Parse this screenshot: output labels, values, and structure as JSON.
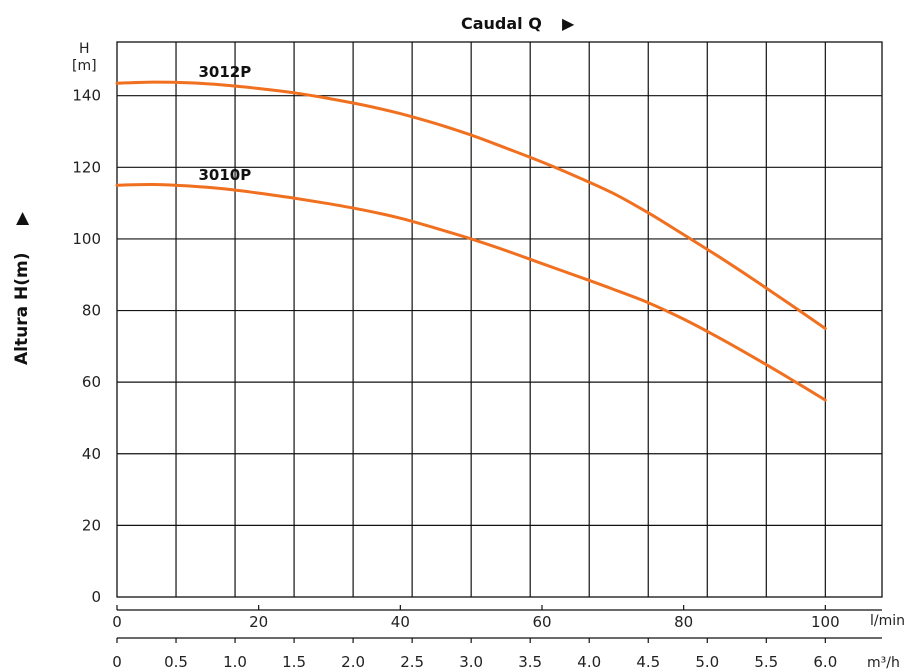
{
  "chart_data": {
    "type": "line",
    "title": "Caudal Q",
    "title_marker": "▶",
    "xlabel": "",
    "ylabel": "Altura H(m)",
    "ylabel_marker": "▶",
    "y_unit_top": "H",
    "y_unit_bottom": "[m]",
    "x_unit_primary": "l/min",
    "x_unit_secondary": "m³/h",
    "xlim": [
      0,
      108
    ],
    "ylim": [
      0,
      155
    ],
    "grid": true,
    "x_ticks_primary": [
      {
        "value": 0,
        "label": "0"
      },
      {
        "value": 20,
        "label": "20"
      },
      {
        "value": 40,
        "label": "40"
      },
      {
        "value": 60,
        "label": "60"
      },
      {
        "value": 80,
        "label": "80"
      },
      {
        "value": 100,
        "label": "100"
      }
    ],
    "x_ticks_secondary": [
      {
        "value": 0,
        "label": "0"
      },
      {
        "value": 0.5,
        "label": "0.5"
      },
      {
        "value": 1.0,
        "label": "1.0"
      },
      {
        "value": 1.5,
        "label": "1.5"
      },
      {
        "value": 2.0,
        "label": "2.0"
      },
      {
        "value": 2.5,
        "label": "2.5"
      },
      {
        "value": 3.0,
        "label": "3.0"
      },
      {
        "value": 3.5,
        "label": "3.5"
      },
      {
        "value": 4.0,
        "label": "4.0"
      },
      {
        "value": 4.5,
        "label": "4.5"
      },
      {
        "value": 5.0,
        "label": "5.0"
      },
      {
        "value": 5.5,
        "label": "5.5"
      },
      {
        "value": 6.0,
        "label": "6.0"
      }
    ],
    "y_ticks": [
      {
        "value": 0,
        "label": "0"
      },
      {
        "value": 20,
        "label": "20"
      },
      {
        "value": 40,
        "label": "40"
      },
      {
        "value": 60,
        "label": "60"
      },
      {
        "value": 80,
        "label": "80"
      },
      {
        "value": 100,
        "label": "100"
      },
      {
        "value": 120,
        "label": "120"
      },
      {
        "value": 140,
        "label": "140"
      }
    ],
    "series": [
      {
        "name": "3012P",
        "color": "#f07020",
        "x": [
          0,
          5,
          10,
          15,
          20,
          25,
          30,
          35,
          40,
          45,
          50,
          55,
          60,
          65,
          70,
          75,
          80,
          85,
          90,
          95,
          100
        ],
        "y": [
          143.5,
          143.8,
          143.6,
          143.0,
          142.0,
          140.8,
          139.2,
          137.3,
          135.0,
          132.2,
          129.0,
          125.3,
          121.5,
          117.3,
          112.8,
          107.3,
          101.2,
          95.0,
          88.5,
          81.8,
          75.0
        ]
      },
      {
        "name": "3010P",
        "color": "#f07020",
        "x": [
          0,
          5,
          10,
          15,
          20,
          25,
          30,
          35,
          40,
          45,
          50,
          55,
          60,
          65,
          70,
          75,
          80,
          85,
          90,
          95,
          100
        ],
        "y": [
          115.0,
          115.2,
          114.8,
          114.0,
          112.8,
          111.4,
          109.8,
          108.0,
          105.8,
          103.0,
          100.0,
          96.7,
          93.1,
          89.6,
          86.0,
          82.2,
          77.6,
          72.4,
          66.8,
          61.0,
          55.0
        ]
      }
    ]
  }
}
